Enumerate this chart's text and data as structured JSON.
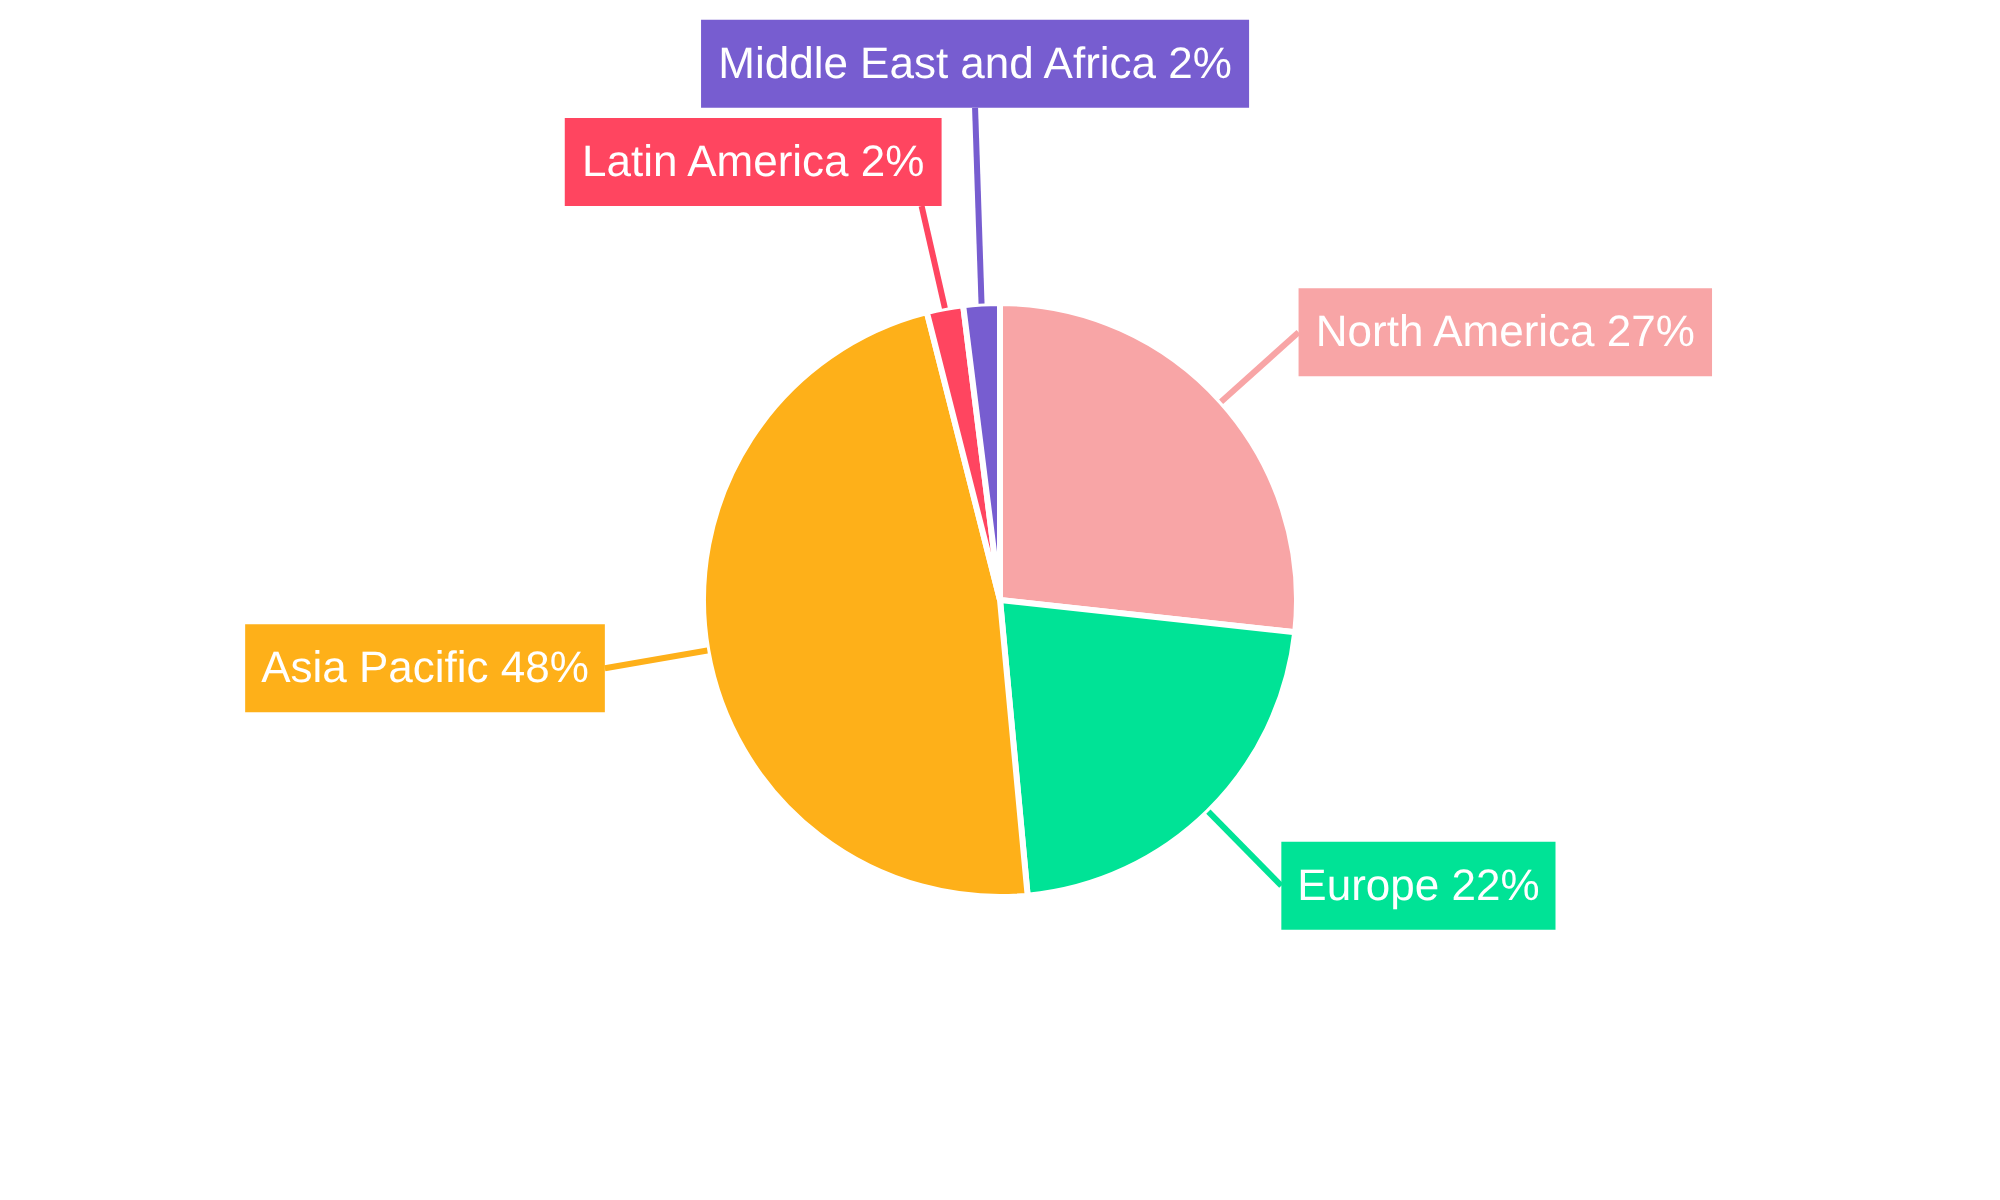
{
  "chart_data": {
    "type": "pie",
    "categories": [
      "North America",
      "Europe",
      "Asia Pacific",
      "Latin America",
      "Middle East and Africa"
    ],
    "values": [
      27,
      22,
      48,
      2,
      2
    ],
    "colors": [
      "#f8a5a6",
      "#00e396",
      "#feb019",
      "#ff4560",
      "#775dd0"
    ],
    "value_labels": [
      "27%",
      "22%",
      "48%",
      "2%",
      "2%"
    ]
  }
}
